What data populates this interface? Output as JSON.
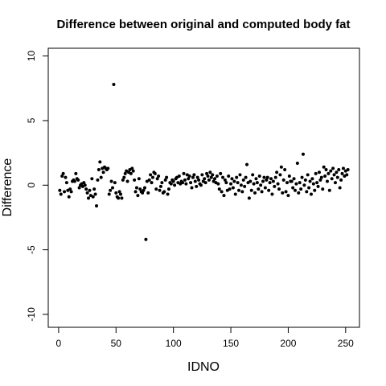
{
  "chart_data": {
    "type": "scatter",
    "title": "Difference between original and computed body fat",
    "xlabel": "IDNO",
    "ylabel": "Difference",
    "color": "#000000",
    "xlim": [
      -9.04,
      262.04
    ],
    "ylim": [
      -11,
      10.6
    ],
    "xticks": [
      0,
      50,
      100,
      150,
      200,
      250
    ],
    "yticks": [
      -10,
      -5,
      0,
      5,
      10
    ],
    "x": [
      1,
      2,
      3,
      4,
      5,
      6,
      7,
      8,
      9,
      10,
      11,
      12,
      13,
      14,
      15,
      16,
      17,
      18,
      19,
      20,
      21,
      22,
      23,
      24,
      25,
      26,
      27,
      28,
      29,
      30,
      31,
      32,
      33,
      34,
      35,
      36,
      37,
      38,
      39,
      40,
      41,
      42,
      43,
      44,
      45,
      46,
      47,
      48,
      49,
      50,
      51,
      52,
      53,
      54,
      55,
      56,
      57,
      58,
      59,
      60,
      61,
      62,
      63,
      64,
      65,
      66,
      67,
      68,
      69,
      70,
      71,
      72,
      73,
      74,
      75,
      76,
      77,
      78,
      79,
      80,
      81,
      82,
      83,
      84,
      85,
      86,
      87,
      88,
      89,
      90,
      91,
      92,
      93,
      94,
      95,
      96,
      97,
      98,
      99,
      100,
      101,
      102,
      103,
      104,
      105,
      106,
      107,
      108,
      109,
      110,
      111,
      112,
      113,
      114,
      115,
      116,
      117,
      118,
      119,
      120,
      121,
      122,
      123,
      124,
      125,
      126,
      127,
      128,
      129,
      130,
      131,
      132,
      133,
      134,
      135,
      136,
      137,
      138,
      139,
      140,
      141,
      142,
      143,
      144,
      145,
      146,
      147,
      148,
      149,
      150,
      151,
      152,
      153,
      154,
      155,
      156,
      157,
      158,
      159,
      160,
      161,
      162,
      163,
      164,
      165,
      166,
      167,
      168,
      169,
      170,
      171,
      172,
      173,
      174,
      175,
      176,
      177,
      178,
      179,
      180,
      181,
      182,
      183,
      184,
      185,
      186,
      187,
      188,
      189,
      190,
      191,
      192,
      193,
      194,
      195,
      196,
      197,
      198,
      199,
      200,
      201,
      202,
      203,
      204,
      205,
      206,
      207,
      208,
      209,
      210,
      211,
      212,
      213,
      214,
      215,
      216,
      217,
      218,
      219,
      220,
      221,
      222,
      223,
      224,
      225,
      226,
      227,
      228,
      229,
      230,
      231,
      232,
      233,
      234,
      235,
      236,
      237,
      238,
      239,
      240,
      241,
      242,
      243,
      244,
      245,
      246,
      247,
      248,
      249,
      250,
      251,
      252
    ],
    "values": [
      -0.4,
      -0.7,
      0.7,
      0.9,
      -0.5,
      0.6,
      0.2,
      -0.4,
      -0.9,
      -0.3,
      -0.5,
      0.3,
      0.4,
      0.3,
      0.9,
      0.5,
      0.4,
      -0.2,
      0.0,
      0.1,
      -0.1,
      0.2,
      0.0,
      -0.3,
      -0.6,
      -1.0,
      -0.4,
      -0.8,
      0.5,
      -0.9,
      -0.3,
      -0.7,
      -1.6,
      0.4,
      1.2,
      1.8,
      0.6,
      1.3,
      1.0,
      1.4,
      1.3,
      1.2,
      1.3,
      -0.7,
      -0.4,
      0.3,
      -0.2,
      7.8,
      0.2,
      -0.6,
      -0.9,
      -1.0,
      -0.5,
      -0.7,
      -1.0,
      0.4,
      0.6,
      0.9,
      1.1,
      0.3,
      1.0,
      1.2,
      0.9,
      1.3,
      1.1,
      0.4,
      -0.5,
      -0.2,
      -0.8,
      0.5,
      -0.3,
      -0.5,
      -0.6,
      -0.4,
      -0.2,
      -4.2,
      0.3,
      -0.6,
      0.4,
      0.8,
      0.2,
      0.6,
      1.0,
      0.9,
      -0.3,
      0.5,
      0.7,
      -0.4,
      -0.1,
      0.2,
      -0.6,
      -0.5,
      0.4,
      0.6,
      -0.7,
      -0.3,
      0.2,
      0.1,
      0.4,
      0.3,
      0.0,
      0.5,
      0.6,
      0.2,
      0.7,
      0.1,
      0.3,
      0.2,
      0.9,
      0.4,
      0.1,
      0.8,
      0.5,
      0.7,
      0.2,
      -0.2,
      0.6,
      0.8,
      0.3,
      -0.1,
      0.6,
      0.4,
      0.1,
      0.0,
      0.8,
      0.3,
      0.5,
      0.2,
      0.9,
      0.7,
      0.4,
      1.0,
      0.6,
      0.8,
      0.3,
      0.5,
      0.2,
      0.7,
      0.1,
      -0.3,
      0.9,
      -0.5,
      0.6,
      -0.8,
      0.4,
      0.2,
      -0.4,
      0.7,
      -0.3,
      0.1,
      0.5,
      -0.2,
      0.3,
      -0.7,
      0.6,
      0.2,
      -0.4,
      0.8,
      0.0,
      -0.5,
      0.4,
      -0.1,
      0.6,
      1.6,
      0.2,
      -1.0,
      0.3,
      -0.4,
      0.8,
      0.1,
      -0.6,
      0.5,
      0.2,
      -0.3,
      0.7,
      0.0,
      -0.5,
      0.3,
      0.6,
      -0.2,
      0.4,
      0.6,
      -0.4,
      0.2,
      0.5,
      -0.7,
      0.3,
      -0.1,
      0.6,
      1.0,
      0.1,
      -0.3,
      0.8,
      1.4,
      -0.6,
      0.4,
      1.2,
      -0.5,
      0.2,
      -0.8,
      0.7,
      0.3,
      0.3,
      -0.2,
      0.5,
      -0.4,
      0.1,
      1.7,
      -0.6,
      0.2,
      -0.3,
      0.6,
      2.4,
      0.0,
      0.4,
      -0.5,
      0.8,
      -0.2,
      0.3,
      -0.7,
      0.5,
      0.1,
      -0.4,
      0.9,
      0.2,
      -0.1,
      1.0,
      0.4,
      0.6,
      -0.3,
      1.4,
      0.7,
      1.2,
      0.3,
      0.9,
      -0.4,
      1.1,
      0.5,
      1.3,
      0.8,
      0.2,
      1.0,
      0.6,
      1.2,
      -0.2,
      0.4,
      0.9,
      1.3,
      0.7,
      1.1,
      0.8,
      1.2
    ]
  }
}
